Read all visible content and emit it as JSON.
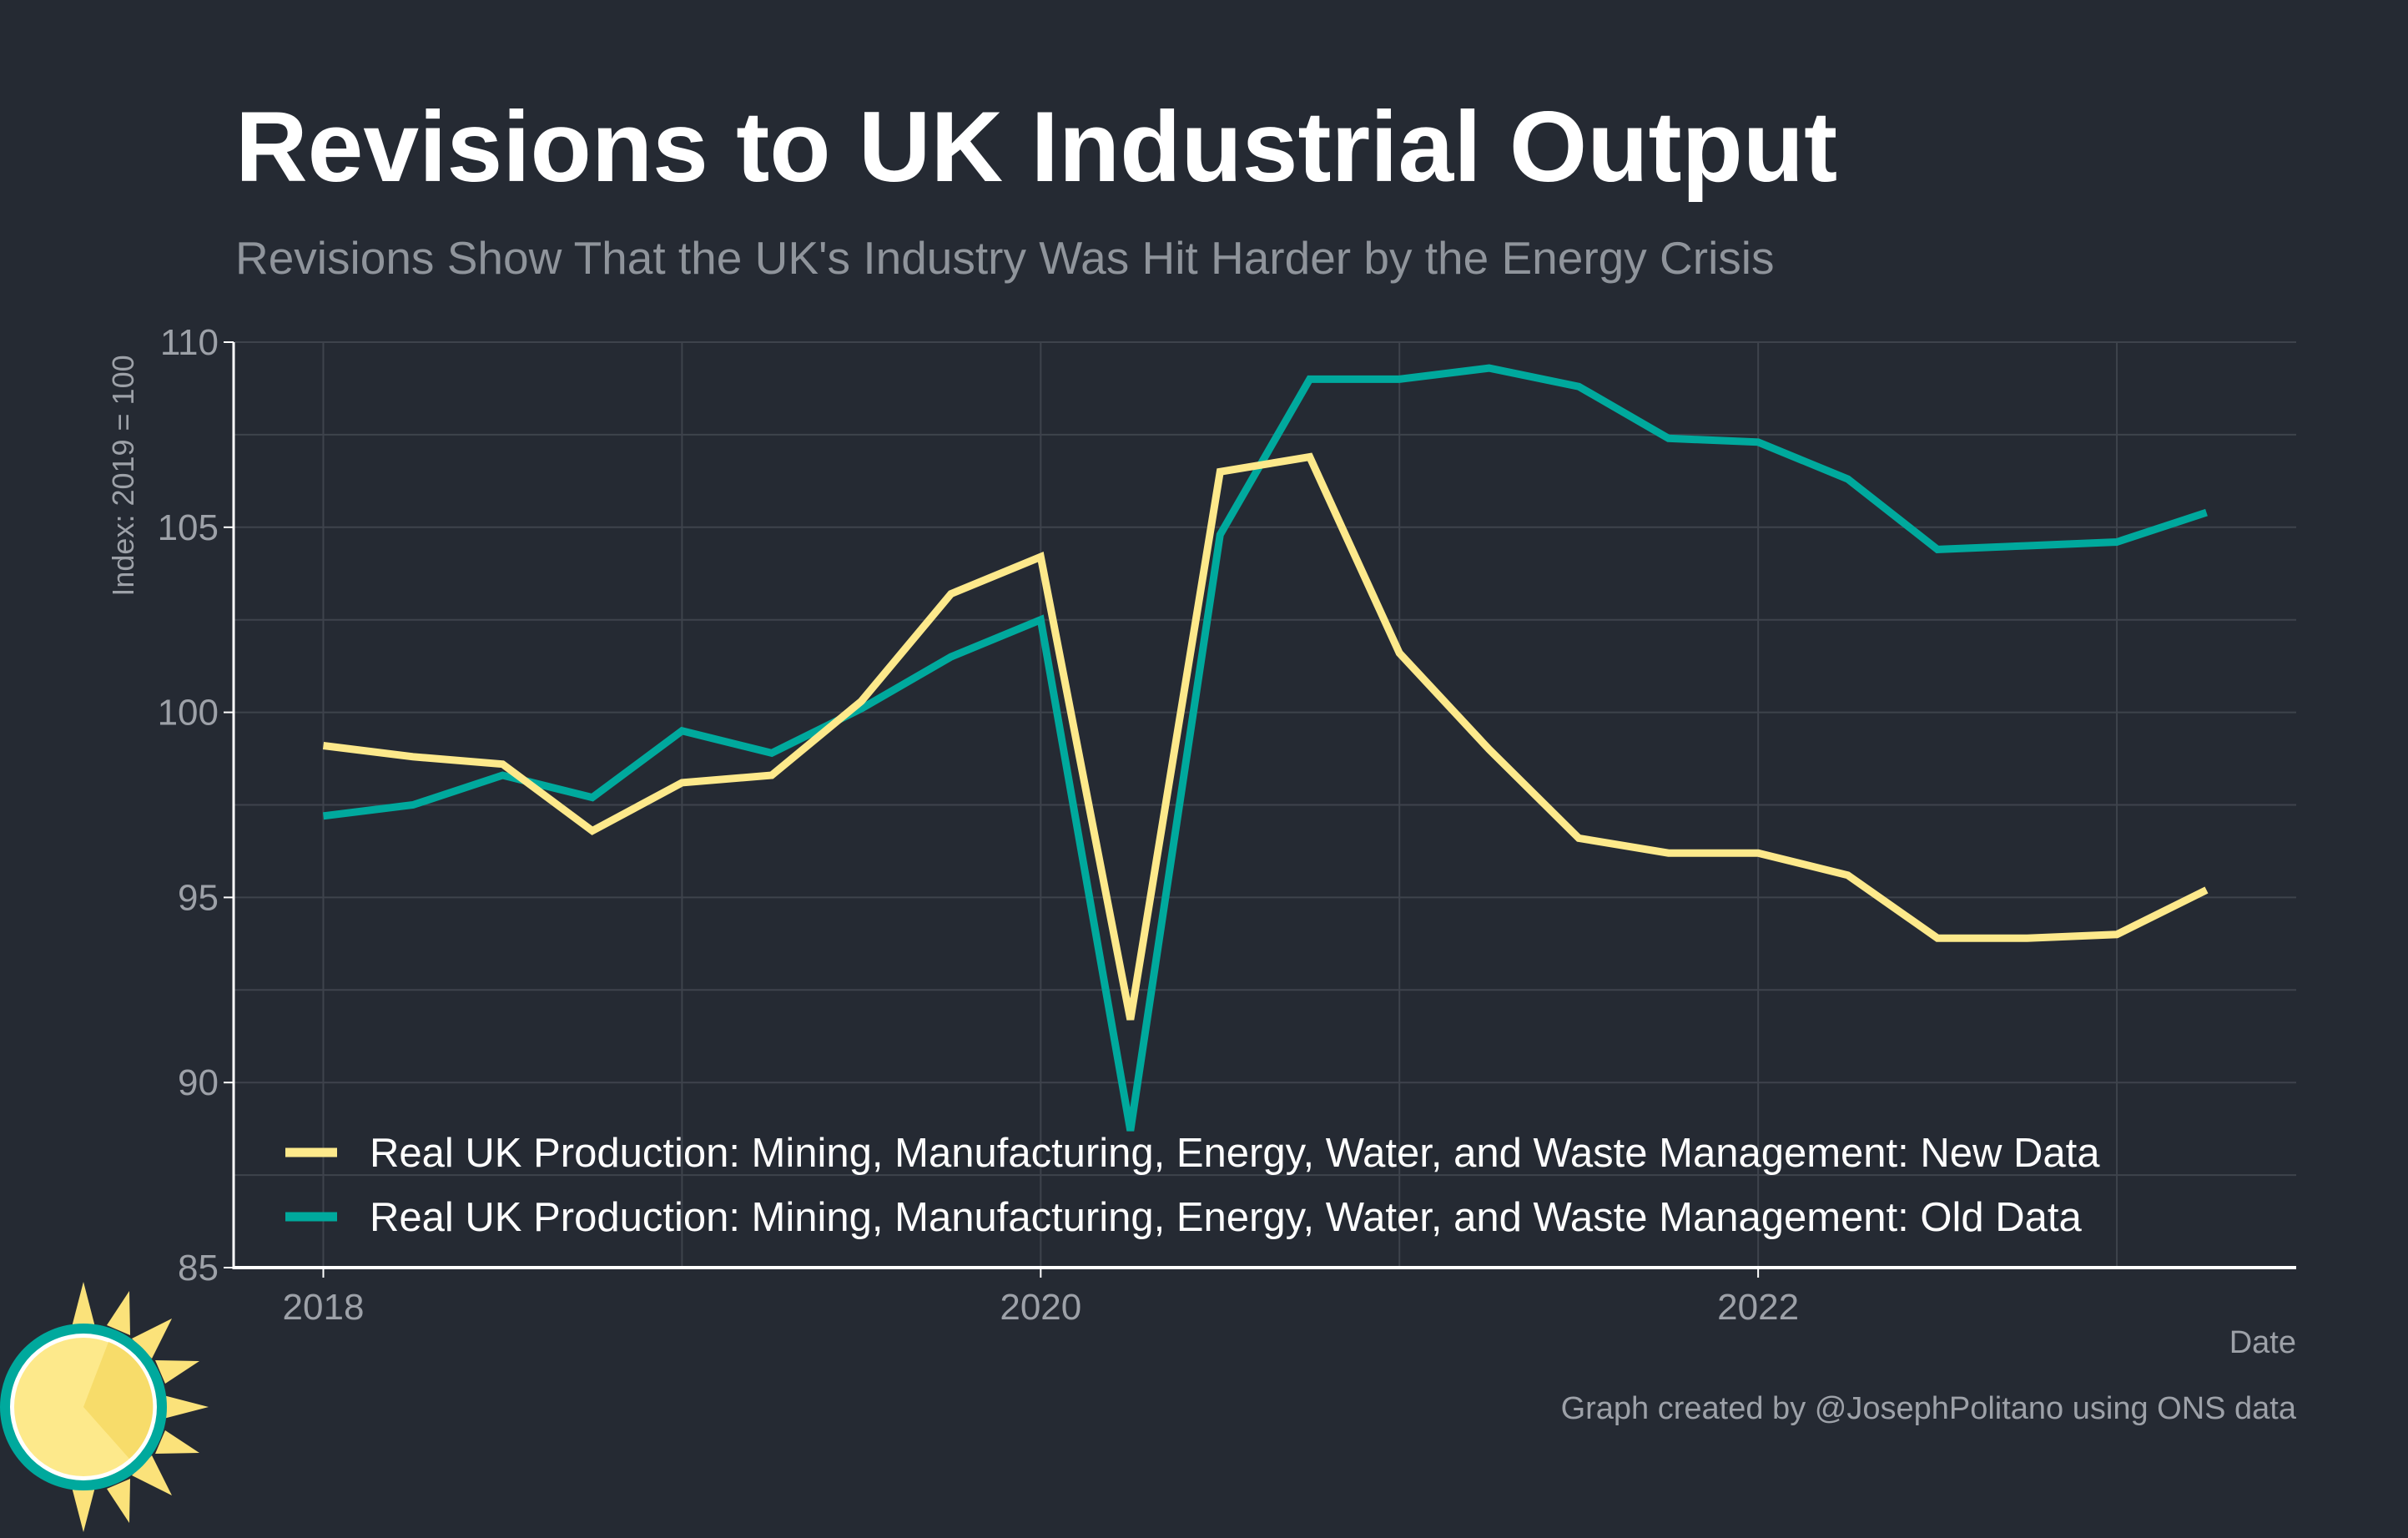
{
  "colors": {
    "background": "#252a33",
    "grid": "#3e434c",
    "axis": "#ffffff",
    "title": "#ffffff",
    "subtitle": "#8f949b",
    "tick": "#9da1a8",
    "legend_text": "#ffffff",
    "new_series": "#fde98b",
    "old_series": "#00a99d"
  },
  "logo_icon": "sun-icon",
  "chart_data": {
    "type": "line",
    "title": "Revisions to UK Industrial Output",
    "subtitle": "Revisions Show That the UK's Industry Was Hit Harder by the Energy Crisis",
    "xlabel": "Date",
    "ylabel": "Index: 2019 = 100",
    "xlim": [
      2017.75,
      2023.5
    ],
    "ylim": [
      85,
      110
    ],
    "x_ticks": [
      2018,
      2020,
      2022
    ],
    "x_tick_labels": [
      "2018",
      "2020",
      "2022"
    ],
    "x_minor_gridlines": [
      2019,
      2021,
      2023
    ],
    "y_ticks": [
      85,
      90,
      95,
      100,
      105,
      110
    ],
    "y_tick_labels": [
      "85",
      "90",
      "95",
      "100",
      "105",
      "110"
    ],
    "grid": true,
    "legend_position": "bottom-left",
    "x": [
      2018.0,
      2018.25,
      2018.5,
      2018.75,
      2019.0,
      2019.25,
      2019.5,
      2019.75,
      2020.0,
      2020.25,
      2020.5,
      2020.75,
      2021.0,
      2021.25,
      2021.5,
      2021.75,
      2022.0,
      2022.25,
      2022.5,
      2022.75,
      2023.0,
      2023.25
    ],
    "series": [
      {
        "name": "Real UK Production: Mining, Manufacturing, Energy, Water, and Waste Management: New Data",
        "color": "#fde98b",
        "values": [
          99.1,
          98.8,
          98.6,
          96.8,
          98.1,
          98.3,
          100.3,
          103.2,
          104.2,
          91.7,
          106.5,
          106.9,
          101.6,
          99.0,
          96.6,
          96.2,
          96.2,
          95.6,
          93.9,
          93.9,
          94.0,
          95.2
        ]
      },
      {
        "name": "Real UK Production: Mining, Manufacturing, Energy, Water, and Waste Management: Old Data",
        "color": "#00a99d",
        "values": [
          97.2,
          97.5,
          98.3,
          97.7,
          99.5,
          98.9,
          100.1,
          101.5,
          102.5,
          88.7,
          104.8,
          109.0,
          109.0,
          109.3,
          108.8,
          107.4,
          107.3,
          106.3,
          104.4,
          104.5,
          104.6,
          105.4
        ]
      }
    ]
  },
  "credit": "Graph created by @JosephPolitano using ONS data"
}
